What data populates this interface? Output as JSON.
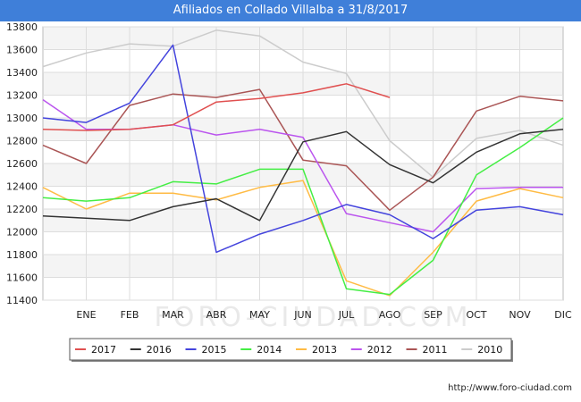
{
  "title": "Afiliados en Collado Villalba a 31/8/2017",
  "watermark": "FORO-CIUDAD.COM",
  "footer_url": "http://www.foro-ciudad.com",
  "chart_data": {
    "type": "line",
    "categories": [
      "",
      "ENE",
      "FEB",
      "MAR",
      "ABR",
      "MAY",
      "JUN",
      "JUL",
      "AGO",
      "SEP",
      "OCT",
      "NOV",
      "DIC"
    ],
    "y_ticks": [
      11400,
      11600,
      11800,
      12000,
      12200,
      12400,
      12600,
      12800,
      13000,
      13200,
      13400,
      13600,
      13800
    ],
    "ylim": [
      11400,
      13800
    ],
    "grid": true,
    "legend_position": "bottom",
    "series": [
      {
        "name": "2017",
        "color": "#e05050",
        "values": [
          12900,
          12890,
          12900,
          12940,
          13140,
          13170,
          13220,
          13300,
          13180,
          null,
          null,
          null,
          null
        ]
      },
      {
        "name": "2016",
        "color": "#333333",
        "values": [
          12140,
          12120,
          12100,
          12220,
          12290,
          12100,
          12790,
          12880,
          12590,
          12430,
          12700,
          12860,
          12900
        ]
      },
      {
        "name": "2015",
        "color": "#4444dd",
        "values": [
          13000,
          12960,
          13130,
          13640,
          11820,
          11980,
          12100,
          12240,
          12150,
          11940,
          12190,
          12220,
          12150
        ]
      },
      {
        "name": "2014",
        "color": "#44ee44",
        "values": [
          12300,
          12270,
          12300,
          12440,
          12420,
          12550,
          12550,
          11500,
          11450,
          11750,
          12500,
          12740,
          13000
        ]
      },
      {
        "name": "2013",
        "color": "#ffbb44",
        "values": [
          12390,
          12200,
          12340,
          12340,
          12280,
          12390,
          12450,
          11570,
          11440,
          11820,
          12270,
          12380,
          12300
        ]
      },
      {
        "name": "2012",
        "color": "#bb55ee",
        "values": [
          13160,
          12900,
          12900,
          12940,
          12850,
          12900,
          12830,
          12160,
          12080,
          12000,
          12380,
          12390,
          12390
        ]
      },
      {
        "name": "2011",
        "color": "#aa5555",
        "values": [
          12760,
          12600,
          13110,
          13210,
          13180,
          13250,
          12630,
          12580,
          12190,
          12480,
          13060,
          13190,
          13150
        ]
      },
      {
        "name": "2010",
        "color": "#cccccc",
        "values": [
          13450,
          13570,
          13650,
          13630,
          13770,
          13720,
          13490,
          13390,
          12800,
          12480,
          12820,
          12890,
          12760
        ]
      }
    ]
  }
}
